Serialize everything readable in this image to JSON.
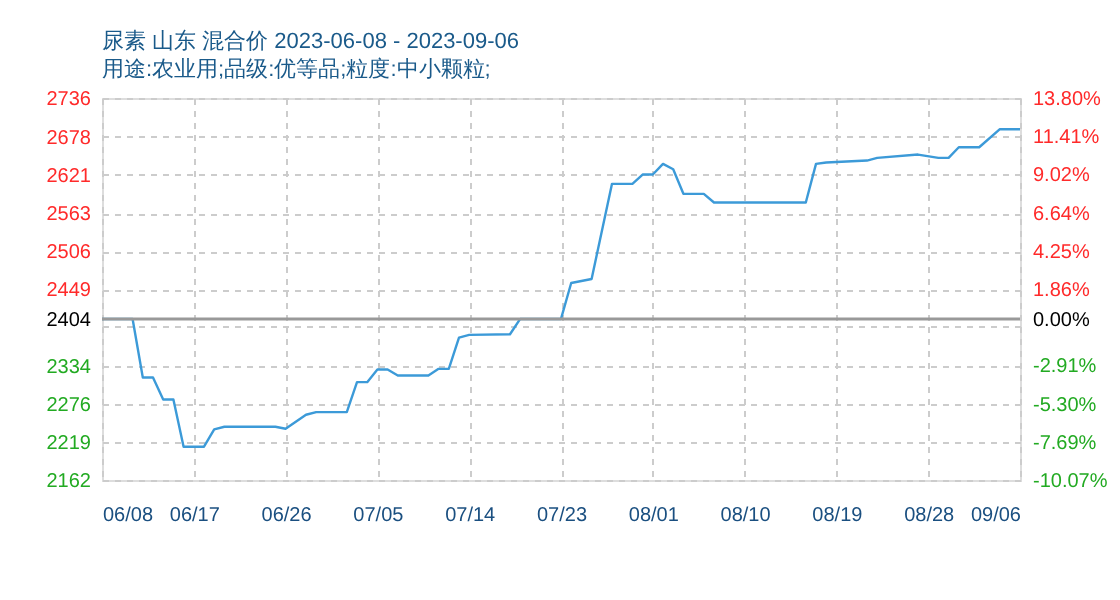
{
  "chart_data": {
    "type": "line",
    "title": "尿素 山东 混合价 2023-06-08 - 2023-09-06",
    "subtitle": "用途:农业用;品级:优等品;粒度:中小颗粒;",
    "x": [
      "2023-06-08",
      "2023-06-11",
      "2023-06-12",
      "2023-06-13",
      "2023-06-14",
      "2023-06-15",
      "2023-06-16",
      "2023-06-18",
      "2023-06-19",
      "2023-06-20",
      "2023-06-25",
      "2023-06-26",
      "2023-06-28",
      "2023-06-29",
      "2023-07-02",
      "2023-07-03",
      "2023-07-04",
      "2023-07-05",
      "2023-07-06",
      "2023-07-07",
      "2023-07-10",
      "2023-07-11",
      "2023-07-12",
      "2023-07-13",
      "2023-07-14",
      "2023-07-18",
      "2023-07-19",
      "2023-07-23",
      "2023-07-24",
      "2023-07-26",
      "2023-07-28",
      "2023-07-30",
      "2023-07-31",
      "2023-08-01",
      "2023-08-02",
      "2023-08-03",
      "2023-08-04",
      "2023-08-06",
      "2023-08-07",
      "2023-08-16",
      "2023-08-17",
      "2023-08-18",
      "2023-08-22",
      "2023-08-23",
      "2023-08-27",
      "2023-08-29",
      "2023-08-30",
      "2023-08-31",
      "2023-09-02",
      "2023-09-04",
      "2023-09-06"
    ],
    "series": [
      {
        "color": "#3c9ad8",
        "values": [
          2404,
          2404,
          2316,
          2316,
          2283,
          2283,
          2212,
          2212,
          2238,
          2242,
          2242,
          2239,
          2260,
          2264,
          2264,
          2309,
          2309,
          2328,
          2328,
          2319,
          2319,
          2329,
          2329,
          2376,
          2380,
          2381,
          2404,
          2404,
          2458,
          2464,
          2607,
          2607,
          2621,
          2621,
          2637,
          2629,
          2592,
          2592,
          2579,
          2579,
          2637,
          2639,
          2642,
          2646,
          2651,
          2646,
          2646,
          2662,
          2662,
          2689,
          2689
        ]
      }
    ],
    "xlim": [
      "2023-06-08",
      "2023-09-06"
    ],
    "xticks": [
      {
        "value": "2023-06-08",
        "label": "06/08"
      },
      {
        "value": "2023-06-17",
        "label": "06/17"
      },
      {
        "value": "2023-06-26",
        "label": "06/26"
      },
      {
        "value": "2023-07-05",
        "label": "07/05"
      },
      {
        "value": "2023-07-14",
        "label": "07/14"
      },
      {
        "value": "2023-07-23",
        "label": "07/23"
      },
      {
        "value": "2023-08-01",
        "label": "08/01"
      },
      {
        "value": "2023-08-10",
        "label": "08/10"
      },
      {
        "value": "2023-08-19",
        "label": "08/19"
      },
      {
        "value": "2023-08-28",
        "label": "08/28"
      },
      {
        "value": "2023-09-06",
        "label": "09/06"
      }
    ],
    "ylim": [
      2162,
      2736
    ],
    "yticks": [
      2162,
      2219,
      2276,
      2334,
      {
        "value": 2392,
        "label": null
      },
      2404,
      2449,
      2506,
      2563,
      2621,
      2678,
      2736
    ],
    "y2lim": [
      -10.07,
      13.8
    ],
    "y2ticks": [
      {
        "value": -10.07,
        "label": "-10.07%"
      },
      {
        "value": -7.69,
        "label": "-7.69%"
      },
      {
        "value": -5.3,
        "label": "-5.30%"
      },
      {
        "value": -2.91,
        "label": "-2.91%"
      },
      {
        "value": 0,
        "label": "0.00%"
      },
      {
        "value": 1.86,
        "label": "1.86%"
      },
      {
        "value": 4.25,
        "label": "4.25%"
      },
      {
        "value": 6.64,
        "label": "6.64%"
      },
      {
        "value": 9.02,
        "label": "9.02%"
      },
      {
        "value": 11.41,
        "label": "11.41%"
      },
      {
        "value": 13.8,
        "label": "13.80%"
      }
    ],
    "ref_lines": [
      {
        "axis": "y",
        "value": 2404,
        "color": "#999999",
        "line_style": "solid"
      }
    ],
    "grid": true,
    "marker": "none",
    "line_style": "solid"
  }
}
